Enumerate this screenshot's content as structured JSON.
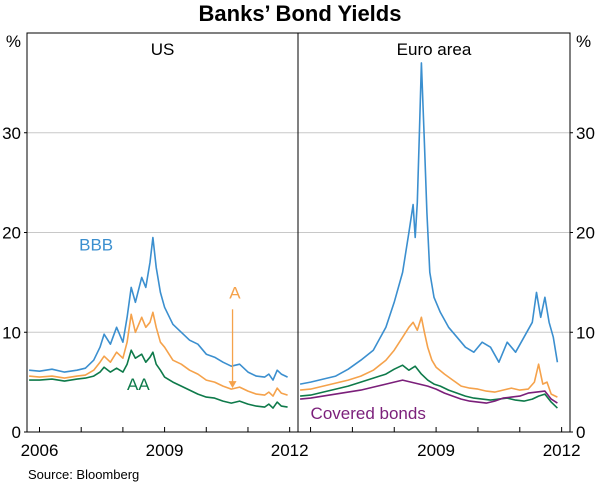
{
  "title": "Banks’ Bond Yields",
  "source": "Source: Bloomberg",
  "colors": {
    "bbb": "#3b8fcf",
    "a": "#f5a24b",
    "aa": "#0e7a4a",
    "covered": "#7b1f7a",
    "grid": "#c8c8c8",
    "axis": "#000000"
  },
  "chart_data": [
    {
      "type": "line",
      "panel_title": "US",
      "ylabel_left": "%",
      "ylim": [
        0,
        40
      ],
      "yticks": [
        "0",
        "10",
        "20",
        "30"
      ],
      "xlim": [
        2005.7,
        2012.2
      ],
      "xtick_labels": [
        "2006",
        "2009",
        "2012"
      ],
      "grid": true,
      "series": [
        {
          "name": "BBB",
          "color_key": "bbb",
          "x": [
            2005.75,
            2006.0,
            2006.3,
            2006.6,
            2006.9,
            2007.1,
            2007.3,
            2007.45,
            2007.55,
            2007.7,
            2007.85,
            2008.0,
            2008.1,
            2008.2,
            2008.3,
            2008.45,
            2008.55,
            2008.65,
            2008.72,
            2008.8,
            2008.9,
            2009.0,
            2009.2,
            2009.4,
            2009.6,
            2009.8,
            2010.0,
            2010.2,
            2010.4,
            2010.6,
            2010.8,
            2011.0,
            2011.2,
            2011.4,
            2011.5,
            2011.6,
            2011.7,
            2011.8,
            2011.95
          ],
          "y": [
            6.2,
            6.1,
            6.3,
            6.0,
            6.2,
            6.4,
            7.2,
            8.5,
            9.8,
            8.8,
            10.5,
            9.0,
            11.5,
            14.5,
            13.0,
            15.5,
            14.5,
            17.0,
            19.5,
            16.5,
            14.0,
            12.5,
            10.8,
            10.0,
            9.2,
            8.8,
            7.8,
            7.5,
            7.0,
            6.6,
            6.8,
            6.0,
            5.6,
            5.5,
            5.8,
            5.2,
            6.2,
            5.8,
            5.5
          ]
        },
        {
          "name": "A",
          "color_key": "a",
          "x": [
            2005.75,
            2006.0,
            2006.3,
            2006.6,
            2006.9,
            2007.1,
            2007.3,
            2007.45,
            2007.55,
            2007.7,
            2007.85,
            2008.0,
            2008.1,
            2008.2,
            2008.3,
            2008.45,
            2008.55,
            2008.65,
            2008.72,
            2008.8,
            2008.9,
            2009.0,
            2009.2,
            2009.4,
            2009.6,
            2009.8,
            2010.0,
            2010.2,
            2010.4,
            2010.6,
            2010.8,
            2011.0,
            2011.2,
            2011.4,
            2011.5,
            2011.6,
            2011.7,
            2011.8,
            2011.95
          ],
          "y": [
            5.6,
            5.5,
            5.6,
            5.4,
            5.6,
            5.7,
            6.2,
            7.0,
            7.6,
            7.0,
            8.0,
            7.4,
            9.0,
            11.8,
            10.0,
            11.5,
            10.5,
            11.0,
            12.0,
            10.5,
            9.0,
            8.5,
            7.2,
            6.8,
            6.2,
            5.8,
            5.2,
            5.0,
            4.6,
            4.3,
            4.5,
            4.1,
            3.8,
            3.7,
            4.0,
            3.6,
            4.4,
            3.9,
            3.7
          ]
        },
        {
          "name": "AA",
          "color_key": "aa",
          "x": [
            2005.75,
            2006.0,
            2006.3,
            2006.6,
            2006.9,
            2007.1,
            2007.3,
            2007.45,
            2007.55,
            2007.7,
            2007.85,
            2008.0,
            2008.1,
            2008.2,
            2008.3,
            2008.45,
            2008.55,
            2008.65,
            2008.72,
            2008.8,
            2008.9,
            2009.0,
            2009.2,
            2009.4,
            2009.6,
            2009.8,
            2010.0,
            2010.2,
            2010.4,
            2010.6,
            2010.8,
            2011.0,
            2011.2,
            2011.4,
            2011.5,
            2011.6,
            2011.7,
            2011.8,
            2011.95
          ],
          "y": [
            5.2,
            5.2,
            5.3,
            5.1,
            5.3,
            5.4,
            5.6,
            6.0,
            6.5,
            6.0,
            6.4,
            6.0,
            6.8,
            8.2,
            7.4,
            7.8,
            7.0,
            7.5,
            8.0,
            6.8,
            6.2,
            5.5,
            5.0,
            4.6,
            4.2,
            3.8,
            3.5,
            3.4,
            3.1,
            2.9,
            3.1,
            2.8,
            2.6,
            2.5,
            2.8,
            2.4,
            3.0,
            2.6,
            2.5
          ]
        }
      ],
      "labels": [
        {
          "text": "BBB",
          "color_key": "bbb",
          "x": 2006.95,
          "y": 18.2
        },
        {
          "text": "A",
          "color_key": "a",
          "x": 2010.55,
          "y": 13.4
        },
        {
          "text": "AA",
          "color_key": "aa",
          "x": 2008.1,
          "y": 4.2
        }
      ]
    },
    {
      "type": "line",
      "panel_title": "Euro area",
      "ylabel_right": "%",
      "ylim": [
        0,
        40
      ],
      "yticks": [
        "0",
        "10",
        "20",
        "30"
      ],
      "xlim": [
        2005.7,
        2012.2
      ],
      "xtick_labels": [
        "2009",
        "2012"
      ],
      "grid": true,
      "series": [
        {
          "name": "",
          "color_key": "bbb",
          "x": [
            2005.75,
            2006.0,
            2006.3,
            2006.6,
            2006.9,
            2007.2,
            2007.5,
            2007.8,
            2008.0,
            2008.2,
            2008.35,
            2008.45,
            2008.5,
            2008.55,
            2008.6,
            2008.65,
            2008.72,
            2008.78,
            2008.85,
            2008.95,
            2009.1,
            2009.3,
            2009.5,
            2009.7,
            2009.9,
            2010.1,
            2010.3,
            2010.5,
            2010.7,
            2010.9,
            2011.1,
            2011.3,
            2011.4,
            2011.5,
            2011.6,
            2011.7,
            2011.8,
            2011.9
          ],
          "y": [
            4.8,
            5.0,
            5.3,
            5.6,
            6.3,
            7.2,
            8.2,
            10.5,
            13.0,
            16.0,
            20.0,
            22.8,
            19.5,
            23.0,
            30.0,
            37.0,
            29.0,
            22.0,
            16.0,
            13.5,
            12.0,
            10.5,
            9.5,
            8.5,
            8.0,
            9.0,
            8.5,
            7.0,
            9.0,
            8.0,
            9.5,
            11.0,
            14.0,
            11.5,
            13.5,
            11.0,
            9.5,
            7.0
          ]
        },
        {
          "name": "",
          "color_key": "a",
          "x": [
            2005.75,
            2006.0,
            2006.3,
            2006.6,
            2006.9,
            2007.2,
            2007.5,
            2007.8,
            2008.0,
            2008.2,
            2008.35,
            2008.45,
            2008.55,
            2008.65,
            2008.72,
            2008.8,
            2008.9,
            2009.0,
            2009.2,
            2009.4,
            2009.6,
            2009.8,
            2010.0,
            2010.2,
            2010.4,
            2010.6,
            2010.8,
            2011.0,
            2011.2,
            2011.35,
            2011.45,
            2011.55,
            2011.65,
            2011.75,
            2011.9
          ],
          "y": [
            4.2,
            4.3,
            4.6,
            4.9,
            5.2,
            5.6,
            6.2,
            7.2,
            8.2,
            9.5,
            10.5,
            11.0,
            10.2,
            11.5,
            10.0,
            8.5,
            7.2,
            6.5,
            5.8,
            5.2,
            4.6,
            4.4,
            4.3,
            4.1,
            4.0,
            4.2,
            4.4,
            4.2,
            4.3,
            5.0,
            6.8,
            4.8,
            5.0,
            3.8,
            3.5
          ]
        },
        {
          "name": "",
          "color_key": "aa",
          "x": [
            2005.75,
            2006.0,
            2006.3,
            2006.6,
            2006.9,
            2007.2,
            2007.5,
            2007.8,
            2008.0,
            2008.2,
            2008.35,
            2008.5,
            2008.65,
            2008.8,
            2008.95,
            2009.1,
            2009.3,
            2009.5,
            2009.7,
            2009.9,
            2010.1,
            2010.3,
            2010.5,
            2010.7,
            2010.9,
            2011.1,
            2011.3,
            2011.45,
            2011.6,
            2011.75,
            2011.9
          ],
          "y": [
            3.6,
            3.7,
            4.0,
            4.3,
            4.6,
            5.0,
            5.4,
            5.8,
            6.3,
            6.7,
            6.2,
            6.6,
            5.8,
            5.2,
            4.8,
            4.6,
            4.2,
            3.9,
            3.6,
            3.4,
            3.3,
            3.2,
            3.3,
            3.4,
            3.2,
            3.1,
            3.3,
            3.6,
            3.8,
            3.0,
            2.4
          ]
        },
        {
          "name": "Covered bonds",
          "color_key": "covered",
          "x": [
            2005.75,
            2006.0,
            2006.3,
            2006.6,
            2006.9,
            2007.2,
            2007.5,
            2007.8,
            2008.0,
            2008.2,
            2008.4,
            2008.6,
            2008.8,
            2009.0,
            2009.2,
            2009.4,
            2009.6,
            2009.8,
            2010.0,
            2010.2,
            2010.4,
            2010.6,
            2010.8,
            2011.0,
            2011.2,
            2011.4,
            2011.6,
            2011.75,
            2011.9
          ],
          "y": [
            3.3,
            3.4,
            3.6,
            3.8,
            4.0,
            4.2,
            4.5,
            4.8,
            5.0,
            5.2,
            5.0,
            4.8,
            4.6,
            4.3,
            3.9,
            3.6,
            3.3,
            3.1,
            3.0,
            2.9,
            3.1,
            3.4,
            3.5,
            3.6,
            3.9,
            4.0,
            4.1,
            3.3,
            2.9
          ]
        }
      ],
      "labels": [
        {
          "text": "Covered bonds",
          "color_key": "covered",
          "x": 2006.0,
          "y": 1.3
        }
      ]
    }
  ]
}
